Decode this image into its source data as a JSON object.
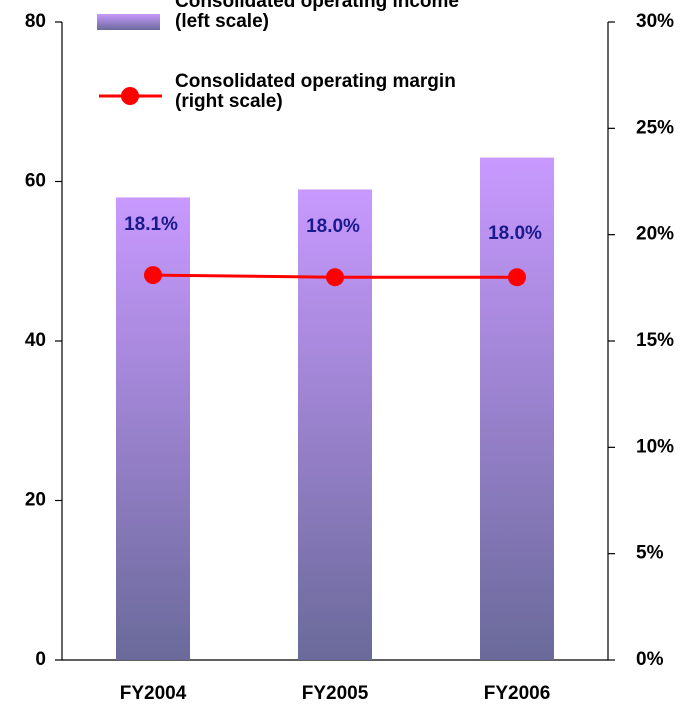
{
  "chart_data": {
    "type": "bar-line",
    "categories": [
      "FY2004",
      "FY2005",
      "FY2006"
    ],
    "series": [
      {
        "name": "Consolidated operating income\n(left scale)",
        "type": "bar",
        "color": "#c899ff",
        "values": [
          58,
          59,
          63
        ]
      },
      {
        "name": "Consolidated operating margin\n(right scale)",
        "type": "line",
        "color": "#ff0000",
        "axis": "y2",
        "values": [
          18.1,
          18.0,
          18.0
        ],
        "value_labels": [
          "18.1%",
          "18.0%",
          "18.0%"
        ]
      }
    ],
    "ylim": [
      0,
      80
    ],
    "yticks": [
      0,
      20,
      40,
      60,
      80
    ],
    "y2lim": [
      0,
      30
    ],
    "y2ticks": [
      {
        "value": 0,
        "label": "0%"
      },
      {
        "value": 5,
        "label": "5%"
      },
      {
        "value": 10,
        "label": "10%"
      },
      {
        "value": 15,
        "label": "15%"
      },
      {
        "value": 20,
        "label": "20%"
      },
      {
        "value": 25,
        "label": "25%"
      },
      {
        "value": 30,
        "label": "30%"
      }
    ],
    "grid": false
  }
}
